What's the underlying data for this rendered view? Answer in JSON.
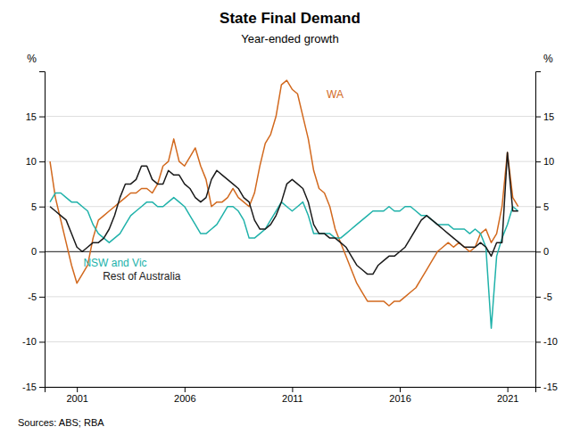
{
  "chart_data": {
    "type": "line",
    "title": "State Final Demand",
    "subtitle": "Year-ended growth",
    "ylabel": "%",
    "y2label": "%",
    "source": "Sources: ABS; RBA",
    "grid": true,
    "xlim": [
      1999.5,
      2022.3
    ],
    "xticks": [
      2001,
      2006,
      2011,
      2016,
      2021
    ],
    "ylim": [
      -15,
      20
    ],
    "yticks": [
      -15,
      -10,
      -5,
      0,
      5,
      10,
      15
    ],
    "y2lim": [
      -15,
      20
    ],
    "y2ticks": [
      -15,
      -10,
      -5,
      0,
      5,
      10,
      15
    ],
    "x": [
      1999.75,
      2000.0,
      2000.25,
      2000.5,
      2000.75,
      2001.0,
      2001.25,
      2001.5,
      2001.75,
      2002.0,
      2002.25,
      2002.5,
      2002.75,
      2003.0,
      2003.25,
      2003.5,
      2003.75,
      2004.0,
      2004.25,
      2004.5,
      2004.75,
      2005.0,
      2005.25,
      2005.5,
      2005.75,
      2006.0,
      2006.25,
      2006.5,
      2006.75,
      2007.0,
      2007.25,
      2007.5,
      2007.75,
      2008.0,
      2008.25,
      2008.5,
      2008.75,
      2009.0,
      2009.25,
      2009.5,
      2009.75,
      2010.0,
      2010.25,
      2010.5,
      2010.75,
      2011.0,
      2011.25,
      2011.5,
      2011.75,
      2012.0,
      2012.25,
      2012.5,
      2012.75,
      2013.0,
      2013.25,
      2013.5,
      2013.75,
      2014.0,
      2014.25,
      2014.5,
      2014.75,
      2015.0,
      2015.25,
      2015.5,
      2015.75,
      2016.0,
      2016.25,
      2016.5,
      2016.75,
      2017.0,
      2017.25,
      2017.5,
      2017.75,
      2018.0,
      2018.25,
      2018.5,
      2018.75,
      2019.0,
      2019.25,
      2019.5,
      2019.75,
      2020.0,
      2020.25,
      2020.5,
      2020.75,
      2021.0,
      2021.25,
      2021.5
    ],
    "series": [
      {
        "color": "#d2691e",
        "values": [
          10.0,
          6.0,
          3.5,
          1.0,
          -1.5,
          -3.5,
          -2.5,
          -1.5,
          1.5,
          3.5,
          4.0,
          4.5,
          5.0,
          5.5,
          6.0,
          6.5,
          6.5,
          7.0,
          7.0,
          6.5,
          7.5,
          9.5,
          10.0,
          12.5,
          10.0,
          9.5,
          10.5,
          11.5,
          9.5,
          8.0,
          5.0,
          5.5,
          5.5,
          6.0,
          7.0,
          6.0,
          5.5,
          5.0,
          6.5,
          9.5,
          12.0,
          13.0,
          15.0,
          18.5,
          19.0,
          18.0,
          17.5,
          15.0,
          12.5,
          9.0,
          7.0,
          6.5,
          5.0,
          2.5,
          1.0,
          -0.5,
          -2.0,
          -3.5,
          -4.5,
          -5.5,
          -5.5,
          -5.5,
          -5.5,
          -6.0,
          -5.5,
          -5.5,
          -5.0,
          -4.5,
          -4.0,
          -3.0,
          -2.0,
          -1.0,
          0.0,
          0.5,
          1.0,
          0.5,
          1.0,
          0.5,
          0.0,
          0.5,
          2.0,
          2.5,
          1.0,
          2.0,
          5.0,
          11.0,
          6.0,
          5.0
        ]
      },
      {
        "color": "#20b2aa",
        "values": [
          5.5,
          6.5,
          6.5,
          6.0,
          5.5,
          5.5,
          5.0,
          4.5,
          3.0,
          2.0,
          1.5,
          1.0,
          1.5,
          2.0,
          3.0,
          4.0,
          4.5,
          5.0,
          5.5,
          5.5,
          5.0,
          5.0,
          5.5,
          6.0,
          5.5,
          5.0,
          4.0,
          3.0,
          2.0,
          2.0,
          2.5,
          3.0,
          4.0,
          5.0,
          5.0,
          4.5,
          3.5,
          1.5,
          1.5,
          2.0,
          2.5,
          3.5,
          4.5,
          5.5,
          5.0,
          4.5,
          5.0,
          5.5,
          4.0,
          2.0,
          2.0,
          2.0,
          2.0,
          1.5,
          1.5,
          2.0,
          2.5,
          3.0,
          3.5,
          4.0,
          4.5,
          4.5,
          4.5,
          5.0,
          4.5,
          4.5,
          5.0,
          5.0,
          4.5,
          4.0,
          4.0,
          3.5,
          3.0,
          3.0,
          3.0,
          2.5,
          2.5,
          2.5,
          2.0,
          2.5,
          2.0,
          0.5,
          -8.5,
          -0.5,
          1.5,
          3.0,
          5.0,
          4.5
        ]
      },
      {
        "color": "#1a1a1a",
        "values": [
          5.0,
          4.5,
          4.0,
          3.5,
          2.0,
          0.5,
          0.0,
          0.5,
          1.0,
          1.0,
          1.5,
          2.5,
          4.0,
          6.0,
          7.5,
          7.5,
          8.0,
          9.5,
          9.5,
          8.0,
          7.5,
          7.5,
          9.0,
          8.5,
          8.5,
          7.5,
          7.0,
          6.0,
          5.5,
          6.0,
          8.0,
          9.0,
          8.5,
          8.0,
          7.5,
          7.0,
          6.0,
          5.5,
          3.5,
          2.5,
          2.5,
          3.0,
          4.0,
          5.5,
          7.5,
          8.0,
          7.5,
          7.0,
          5.5,
          3.0,
          2.0,
          2.0,
          1.5,
          1.5,
          1.0,
          0.5,
          -0.5,
          -1.5,
          -2.0,
          -2.5,
          -2.5,
          -1.5,
          -1.0,
          -0.5,
          -0.5,
          0.0,
          0.5,
          1.5,
          2.5,
          3.5,
          4.0,
          3.5,
          3.0,
          2.5,
          2.0,
          1.5,
          1.0,
          0.5,
          0.5,
          0.5,
          1.0,
          0.5,
          -0.5,
          1.0,
          1.0,
          11.0,
          4.5,
          4.5
        ]
      }
    ],
    "annotations": [
      {
        "text": "WA",
        "x": 2012.6,
        "y": 17.0,
        "color": "#d2691e"
      },
      {
        "text": "NSW and Vic",
        "x": 2001.3,
        "y": -1.7,
        "color": "#20b2aa"
      },
      {
        "text": "Rest of Australia",
        "x": 2002.2,
        "y": -3.1,
        "color": "#1a1a1a"
      }
    ]
  }
}
